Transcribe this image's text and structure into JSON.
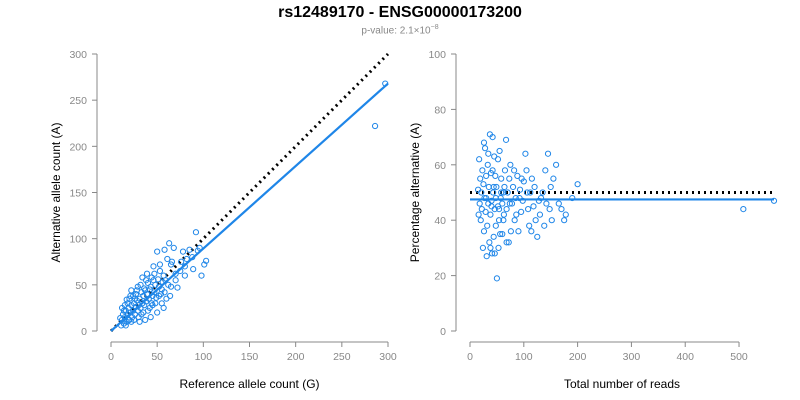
{
  "title": "rs12489170 - ENSG00000173200",
  "subtitle": {
    "prefix": "p-value: 2.1×10",
    "exponent": "−8"
  },
  "colors": {
    "series": "#1f86e8",
    "reference_line": "#000000",
    "axis": "#888888"
  },
  "chart_data": [
    {
      "type": "scatter",
      "xlabel": "Reference allele count (G)",
      "ylabel": "Alternative allele count (A)",
      "xlim": [
        0,
        300
      ],
      "ylim": [
        0,
        300
      ],
      "xticks": [
        0,
        50,
        100,
        150,
        200,
        250,
        300
      ],
      "yticks": [
        0,
        50,
        100,
        150,
        200,
        250,
        300
      ],
      "grid": false,
      "reference_line": {
        "style": "dotted",
        "from": [
          0,
          0
        ],
        "to": [
          300,
          300
        ]
      },
      "fit_line": {
        "style": "solid",
        "from": [
          0,
          0
        ],
        "to": [
          300,
          268
        ]
      },
      "points": [
        [
          297,
          268
        ],
        [
          286,
          222
        ],
        [
          103,
          76
        ],
        [
          101,
          72
        ],
        [
          98,
          60
        ],
        [
          92,
          107
        ],
        [
          94,
          87
        ],
        [
          89,
          67
        ],
        [
          85,
          88
        ],
        [
          82,
          78
        ],
        [
          80,
          60
        ],
        [
          78,
          86
        ],
        [
          76,
          75
        ],
        [
          72,
          47
        ],
        [
          70,
          55
        ],
        [
          68,
          90
        ],
        [
          65,
          72
        ],
        [
          63,
          95
        ],
        [
          61,
          78
        ],
        [
          59,
          55
        ],
        [
          58,
          88
        ],
        [
          57,
          60
        ],
        [
          56,
          53
        ],
        [
          55,
          45
        ],
        [
          54,
          40
        ],
        [
          53,
          65
        ],
        [
          52,
          48
        ],
        [
          51,
          56
        ],
        [
          50,
          86
        ],
        [
          49,
          36
        ],
        [
          48,
          50
        ],
        [
          47,
          42
        ],
        [
          46,
          55
        ],
        [
          45,
          38
        ],
        [
          44,
          30
        ],
        [
          43,
          48
        ],
        [
          42,
          45
        ],
        [
          41,
          35
        ],
        [
          40,
          52
        ],
        [
          39,
          40
        ],
        [
          38,
          32
        ],
        [
          37,
          44
        ],
        [
          36,
          28
        ],
        [
          35,
          38
        ],
        [
          34,
          30
        ],
        [
          33,
          42
        ],
        [
          32,
          25
        ],
        [
          31,
          35
        ],
        [
          30,
          28
        ],
        [
          29,
          22
        ],
        [
          28,
          33
        ],
        [
          27,
          26
        ],
        [
          26,
          18
        ],
        [
          25,
          30
        ],
        [
          24,
          22
        ],
        [
          23,
          15
        ],
        [
          22,
          28
        ],
        [
          21,
          20
        ],
        [
          20,
          12
        ],
        [
          19,
          25
        ],
        [
          18,
          18
        ],
        [
          17,
          10
        ],
        [
          16,
          22
        ],
        [
          15,
          15
        ],
        [
          14,
          8
        ],
        [
          13,
          18
        ],
        [
          12,
          12
        ],
        [
          11,
          6
        ],
        [
          10,
          14
        ],
        [
          28,
          44
        ],
        [
          35,
          20
        ],
        [
          42,
          25
        ],
        [
          26,
          35
        ],
        [
          45,
          28
        ],
        [
          55,
          30
        ],
        [
          60,
          35
        ],
        [
          65,
          48
        ],
        [
          38,
          55
        ],
        [
          30,
          15
        ],
        [
          22,
          10
        ],
        [
          18,
          30
        ],
        [
          15,
          28
        ],
        [
          25,
          12
        ],
        [
          33,
          18
        ],
        [
          40,
          22
        ],
        [
          48,
          30
        ],
        [
          52,
          38
        ],
        [
          58,
          42
        ],
        [
          62,
          50
        ],
        [
          70,
          62
        ],
        [
          75,
          65
        ],
        [
          80,
          70
        ],
        [
          32,
          50
        ],
        [
          36,
          46
        ],
        [
          27,
          40
        ],
        [
          20,
          35
        ],
        [
          24,
          38
        ],
        [
          14,
          22
        ],
        [
          19,
          12
        ],
        [
          29,
          48
        ],
        [
          44,
          58
        ],
        [
          47,
          62
        ],
        [
          53,
          72
        ],
        [
          66,
          75
        ],
        [
          88,
          80
        ],
        [
          96,
          90
        ],
        [
          22,
          44
        ],
        [
          39,
          62
        ],
        [
          17,
          34
        ],
        [
          31,
          10
        ],
        [
          43,
          15
        ],
        [
          50,
          20
        ],
        [
          57,
          25
        ],
        [
          64,
          38
        ],
        [
          34,
          58
        ],
        [
          12,
          25
        ],
        [
          16,
          6
        ],
        [
          21,
          38
        ],
        [
          46,
          70
        ],
        [
          37,
          12
        ]
      ]
    },
    {
      "type": "scatter",
      "xlabel": "Total number of reads",
      "ylabel": "Percentage alternative (A)",
      "xlim": [
        0,
        565
      ],
      "ylim": [
        0,
        100
      ],
      "xticks": [
        0,
        100,
        200,
        300,
        400,
        500
      ],
      "yticks": [
        0,
        20,
        40,
        60,
        80,
        100
      ],
      "grid": false,
      "reference_line": {
        "style": "dotted",
        "y": 50,
        "x_from": 0,
        "x_to": 565
      },
      "fit_line": {
        "style": "solid",
        "y": 47.5,
        "x_from": 0,
        "x_to": 565
      },
      "points": [
        [
          565,
          47
        ],
        [
          508,
          44
        ],
        [
          200,
          53
        ],
        [
          190,
          48
        ],
        [
          178,
          42
        ],
        [
          175,
          40
        ],
        [
          165,
          46
        ],
        [
          160,
          60
        ],
        [
          155,
          55
        ],
        [
          150,
          52
        ],
        [
          148,
          44
        ],
        [
          145,
          64
        ],
        [
          140,
          58
        ],
        [
          138,
          38
        ],
        [
          135,
          50
        ],
        [
          130,
          42
        ],
        [
          128,
          47
        ],
        [
          125,
          34
        ],
        [
          122,
          40
        ],
        [
          120,
          52
        ],
        [
          118,
          45
        ],
        [
          115,
          55
        ],
        [
          112,
          50
        ],
        [
          110,
          38
        ],
        [
          108,
          44
        ],
        [
          105,
          58
        ],
        [
          103,
          64
        ],
        [
          100,
          54
        ],
        [
          98,
          47
        ],
        [
          95,
          43
        ],
        [
          93,
          51
        ],
        [
          90,
          36
        ],
        [
          88,
          56
        ],
        [
          85,
          48
        ],
        [
          83,
          40
        ],
        [
          80,
          52
        ],
        [
          78,
          46
        ],
        [
          76,
          36
        ],
        [
          75,
          60
        ],
        [
          73,
          55
        ],
        [
          72,
          32
        ],
        [
          70,
          50
        ],
        [
          68,
          44
        ],
        [
          67,
          69
        ],
        [
          65,
          58
        ],
        [
          63,
          42
        ],
        [
          62,
          50
        ],
        [
          60,
          35
        ],
        [
          58,
          55
        ],
        [
          57,
          48
        ],
        [
          55,
          65
        ],
        [
          54,
          40
        ],
        [
          53,
          30
        ],
        [
          52,
          45
        ],
        [
          50,
          19
        ],
        [
          49,
          52
        ],
        [
          48,
          38
        ],
        [
          47,
          56
        ],
        [
          46,
          44
        ],
        [
          45,
          63
        ],
        [
          44,
          34
        ],
        [
          43,
          50
        ],
        [
          42,
          70
        ],
        [
          41,
          28
        ],
        [
          40,
          47
        ],
        [
          39,
          57
        ],
        [
          38,
          42
        ],
        [
          37,
          71
        ],
        [
          36,
          32
        ],
        [
          35,
          52
        ],
        [
          34,
          46
        ],
        [
          33,
          60
        ],
        [
          32,
          38
        ],
        [
          31,
          27
        ],
        [
          30,
          56
        ],
        [
          29,
          43
        ],
        [
          28,
          66
        ],
        [
          27,
          48
        ],
        [
          26,
          36
        ],
        [
          25,
          53
        ],
        [
          24,
          30
        ],
        [
          23,
          58
        ],
        [
          22,
          44
        ],
        [
          21,
          50
        ],
        [
          20,
          40
        ],
        [
          19,
          55
        ],
        [
          18,
          46
        ],
        [
          17,
          62
        ],
        [
          16,
          42
        ],
        [
          15,
          51
        ],
        [
          26,
          68
        ],
        [
          30,
          48
        ],
        [
          34,
          64
        ],
        [
          38,
          30
        ],
        [
          42,
          58
        ],
        [
          46,
          28
        ],
        [
          52,
          62
        ],
        [
          56,
          35
        ],
        [
          60,
          46
        ],
        [
          64,
          52
        ],
        [
          68,
          32
        ],
        [
          74,
          46
        ],
        [
          82,
          58
        ],
        [
          86,
          42
        ],
        [
          92,
          48
        ],
        [
          96,
          55
        ],
        [
          106,
          50
        ],
        [
          114,
          36
        ],
        [
          132,
          48
        ],
        [
          142,
          46
        ],
        [
          152,
          40
        ],
        [
          170,
          44
        ],
        [
          40,
          45
        ],
        [
          44,
          52
        ],
        [
          48,
          48
        ],
        [
          54,
          44
        ],
        [
          58,
          50
        ],
        [
          62,
          40
        ]
      ]
    }
  ]
}
